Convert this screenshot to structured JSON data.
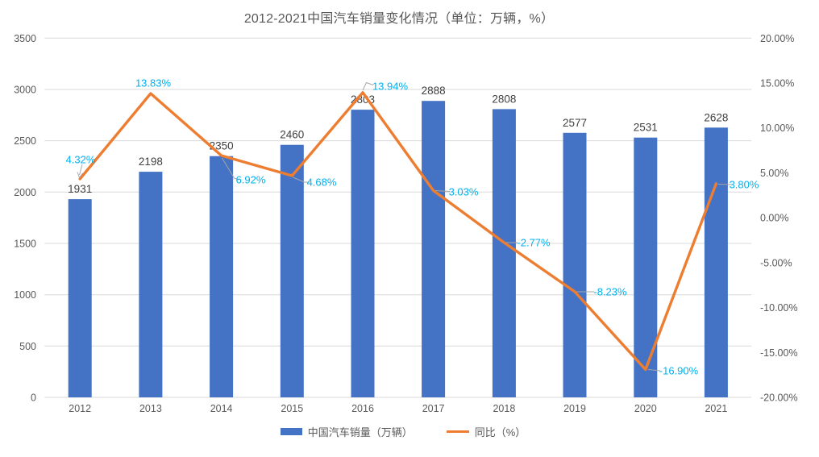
{
  "chart_data": {
    "type": "combo-bar-line",
    "title": "2012-2021中国汽车销量变化情况（单位：万辆，%）",
    "categories": [
      "2012",
      "2013",
      "2014",
      "2015",
      "2016",
      "2017",
      "2018",
      "2019",
      "2020",
      "2021"
    ],
    "series": [
      {
        "name": "中国汽车销量（万辆）",
        "type": "bar",
        "axis": "left",
        "color": "#4472C4",
        "values": [
          1931,
          2198,
          2350,
          2460,
          2803,
          2888,
          2808,
          2577,
          2531,
          2628
        ],
        "labels": [
          "1931",
          "2198",
          "2350",
          "2460",
          "2803",
          "2888",
          "2808",
          "2577",
          "2531",
          "2628"
        ]
      },
      {
        "name": "同比（%）",
        "type": "line",
        "axis": "right",
        "color": "#ED7D31",
        "values": [
          4.32,
          13.83,
          6.92,
          4.68,
          13.94,
          3.03,
          -2.77,
          -8.23,
          -16.9,
          3.8
        ],
        "labels": [
          "4.32%",
          "13.83%",
          "6.92%",
          "4.68%",
          "13.94%",
          "3.03%",
          "-2.77%",
          "-8.23%",
          "-16.90%",
          "3.80%"
        ]
      }
    ],
    "left_axis": {
      "min": 0,
      "max": 3500,
      "step": 500,
      "tick_values": [
        0,
        500,
        1000,
        1500,
        2000,
        2500,
        3000,
        3500
      ],
      "tick_labels": [
        "0",
        "500",
        "1000",
        "1500",
        "2000",
        "2500",
        "3000",
        "3500"
      ]
    },
    "right_axis": {
      "min": -20,
      "max": 20,
      "step": 5,
      "tick_values": [
        -20,
        -15,
        -10,
        -5,
        0,
        5,
        10,
        15,
        20
      ],
      "tick_labels": [
        "-20.00%",
        "-15.00%",
        "-10.00%",
        "-5.00%",
        "0.00%",
        "5.00%",
        "10.00%",
        "15.00%",
        "20.00%"
      ]
    },
    "grid": true,
    "legend_position": "bottom"
  },
  "colors": {
    "bar": "#4472C4",
    "line": "#ED7D31",
    "percent_label": "#00B0F0",
    "value_label": "#404040",
    "axis_text": "#595959",
    "gridline": "#D9D9D9",
    "leader": "#A6A6A6",
    "background": "#FFFFFF"
  }
}
